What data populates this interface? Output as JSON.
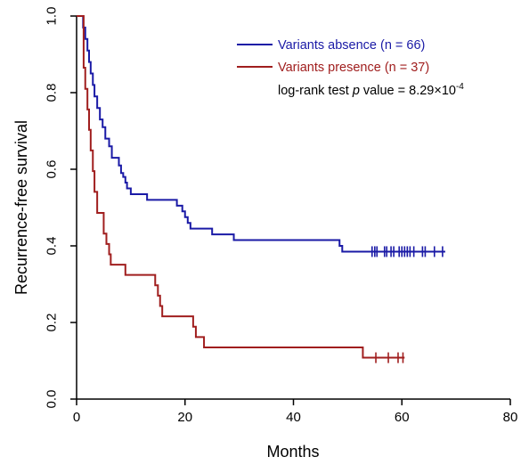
{
  "chart_data": {
    "type": "line",
    "subtype": "kaplan-meier",
    "xlabel": "Months",
    "ylabel": "Recurrence-free survival",
    "xlim": [
      0,
      80
    ],
    "ylim": [
      0,
      1
    ],
    "x_ticks": [
      "0",
      "20",
      "40",
      "60",
      "80"
    ],
    "y_ticks": [
      "0.0",
      "0.2",
      "0.4",
      "0.6",
      "0.8",
      "1.0"
    ],
    "grid": false,
    "legend_position": "top-right",
    "series": [
      {
        "name": "Variants absence (n = 66)",
        "color": "#1a1aa6",
        "steps": [
          [
            0,
            1.0
          ],
          [
            1.2,
            0.97
          ],
          [
            1.6,
            0.94
          ],
          [
            2.0,
            0.91
          ],
          [
            2.3,
            0.88
          ],
          [
            2.6,
            0.85
          ],
          [
            3.0,
            0.82
          ],
          [
            3.3,
            0.79
          ],
          [
            3.8,
            0.76
          ],
          [
            4.3,
            0.73
          ],
          [
            4.8,
            0.71
          ],
          [
            5.3,
            0.68
          ],
          [
            6.0,
            0.66
          ],
          [
            6.5,
            0.63
          ],
          [
            7.8,
            0.61
          ],
          [
            8.2,
            0.59
          ],
          [
            8.6,
            0.58
          ],
          [
            9.0,
            0.565
          ],
          [
            9.3,
            0.55
          ],
          [
            10.0,
            0.535
          ],
          [
            13.0,
            0.52
          ],
          [
            18.5,
            0.505
          ],
          [
            19.5,
            0.49
          ],
          [
            20.0,
            0.475
          ],
          [
            20.5,
            0.46
          ],
          [
            21.0,
            0.445
          ],
          [
            25.0,
            0.43
          ],
          [
            29.0,
            0.415
          ],
          [
            48.5,
            0.4
          ],
          [
            49.0,
            0.385
          ],
          [
            68.0,
            0.385
          ]
        ],
        "censored": [
          54.5,
          55.0,
          55.4,
          56.8,
          57.2,
          58.0,
          58.5,
          59.5,
          60.0,
          60.5,
          61.0,
          61.5,
          62.2,
          63.8,
          64.3,
          66.0,
          67.5
        ]
      },
      {
        "name": "Variants presence (n = 37)",
        "color": "#a01e1e",
        "steps": [
          [
            0,
            1.0
          ],
          [
            1.3,
            0.865
          ],
          [
            1.6,
            0.81
          ],
          [
            2.0,
            0.756
          ],
          [
            2.3,
            0.703
          ],
          [
            2.6,
            0.649
          ],
          [
            3.0,
            0.595
          ],
          [
            3.3,
            0.541
          ],
          [
            3.8,
            0.486
          ],
          [
            5.0,
            0.432
          ],
          [
            5.5,
            0.405
          ],
          [
            6.0,
            0.378
          ],
          [
            6.3,
            0.351
          ],
          [
            9.0,
            0.324
          ],
          [
            14.5,
            0.297
          ],
          [
            15.0,
            0.27
          ],
          [
            15.4,
            0.243
          ],
          [
            15.8,
            0.216
          ],
          [
            21.5,
            0.189
          ],
          [
            22.0,
            0.162
          ],
          [
            23.5,
            0.135
          ],
          [
            52.8,
            0.108
          ],
          [
            60.5,
            0.108
          ]
        ],
        "censored": [
          55.2,
          57.5,
          59.3,
          60.2
        ]
      }
    ],
    "annotation": {
      "prefix": "log-rank test ",
      "italic": "p",
      "middle": " value = 8.29×10",
      "exponent": "-4"
    }
  }
}
